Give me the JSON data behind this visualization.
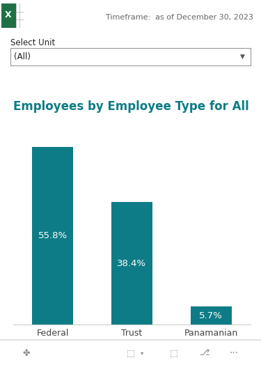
{
  "title": "Employees by Employee Type for All",
  "title_color": "#0e7c86",
  "timeframe_label": "Timeframe:  as of December 30, 2023",
  "select_unit_label": "Select Unit",
  "dropdown_label": "(All)",
  "categories": [
    "Federal",
    "Trust",
    "Panamanian"
  ],
  "values": [
    55.8,
    38.4,
    5.7
  ],
  "bar_color": "#0e7c86",
  "bar_labels": [
    "55.8%",
    "38.4%",
    "5.7%"
  ],
  "label_color": "#ffffff",
  "label_fontsize": 9.5,
  "title_fontsize": 12,
  "xlabel_fontsize": 9,
  "background_color": "#ffffff",
  "axis_label_color": "#444444",
  "timeframe_fontsize": 8,
  "ylim": [
    0,
    65
  ]
}
